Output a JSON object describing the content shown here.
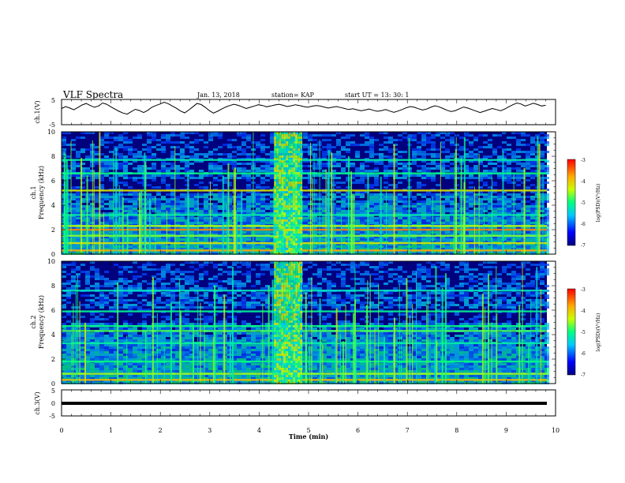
{
  "header": {
    "title": "VLF Spectra",
    "date": "Jan. 13, 2018",
    "station": "station= KAP",
    "start": "start  UT =  13: 30: 1"
  },
  "chart_data": [
    {
      "type": "line",
      "name": "ch1_waveform",
      "ylabel": "ch.1(V)",
      "ylim": [
        -5,
        5
      ],
      "y_ticks": [
        "-5",
        "5"
      ],
      "x_range": [
        0,
        9.8
      ],
      "y": [
        1.4,
        2.2,
        1.6,
        0.9,
        1.8,
        2.8,
        3.4,
        2.6,
        1.9,
        2.4,
        3.6,
        3.1,
        2.1,
        1.2,
        0.3,
        -0.4,
        -0.8,
        0.2,
        1.1,
        0.6,
        -0.2,
        0.7,
        1.9,
        2.6,
        3.2,
        3.9,
        3.3,
        2.4,
        1.5,
        0.4,
        -0.3,
        0.8,
        2.1,
        3.4,
        3.0,
        1.9,
        0.6,
        -0.4,
        0.3,
        1.2,
        2.0,
        2.6,
        3.1,
        2.7,
        2.1,
        1.4,
        1.9,
        2.4,
        2.9,
        2.6,
        2.1,
        2.4,
        2.8,
        3.1,
        2.7,
        2.2,
        2.5,
        2.9,
        2.6,
        2.2,
        1.9,
        2.3,
        2.6,
        2.4,
        2.0,
        1.6,
        1.9,
        2.2,
        1.8,
        1.4,
        1.0,
        1.3,
        0.9,
        0.5,
        0.8,
        1.2,
        0.7,
        0.3,
        0.6,
        1.0,
        0.4,
        -0.1,
        0.4,
        1.0,
        1.7,
        2.2,
        1.9,
        1.3,
        0.8,
        1.2,
        1.9,
        2.5,
        2.1,
        1.4,
        0.7,
        0.2,
        0.6,
        1.3,
        2.0,
        1.6,
        1.0,
        0.4,
        -0.2,
        0.3,
        0.9,
        1.4,
        1.0,
        0.5,
        1.2,
        2.1,
        2.9,
        3.6,
        3.2,
        2.4,
        2.9,
        3.5,
        3.0,
        2.4,
        2.7
      ]
    },
    {
      "type": "heatmap",
      "name": "ch1_spectrogram",
      "ylabel_line1": "ch.1",
      "ylabel_line2": "Frequency (kHz)",
      "ylim": [
        0,
        10
      ],
      "y_ticks": [
        "0",
        "2",
        "4",
        "6",
        "8",
        "10"
      ],
      "x_range_min": [
        0,
        9.8
      ],
      "colorbar": {
        "label": "log(PSD)(V²/Hz)",
        "range": [
          -7,
          -3
        ],
        "ticks": [
          "-3",
          "-4",
          "-5",
          "-6",
          "-7"
        ]
      },
      "burst_min": [
        4.3,
        4.85
      ],
      "bands_khz": [
        {
          "f": 0.3,
          "lvl": -3.8
        },
        {
          "f": 0.9,
          "lvl": -4.2
        },
        {
          "f": 1.5,
          "lvl": -4.6
        },
        {
          "f": 2.0,
          "lvl": -3.6
        },
        {
          "f": 2.3,
          "lvl": -4.4
        },
        {
          "f": 3.2,
          "lvl": -5.2
        },
        {
          "f": 5.2,
          "lvl": -4.2
        },
        {
          "f": 6.6,
          "lvl": -5.0
        },
        {
          "f": 7.7,
          "lvl": -5.2
        }
      ]
    },
    {
      "type": "heatmap",
      "name": "ch2_spectrogram",
      "ylabel_line1": "ch.2",
      "ylabel_line2": "Frequency (kHz)",
      "ylim": [
        0,
        10
      ],
      "y_ticks": [
        "0",
        "2",
        "4",
        "6",
        "8",
        "10"
      ],
      "x_range_min": [
        0,
        9.8
      ],
      "colorbar": {
        "label": "log(PSD)(V²/Hz)",
        "range": [
          -7,
          -3
        ],
        "ticks": [
          "-3",
          "-4",
          "-5",
          "-6",
          "-7"
        ]
      },
      "burst_min": [
        4.3,
        4.85
      ],
      "bands_khz": [
        {
          "f": 0.3,
          "lvl": -3.9
        },
        {
          "f": 0.8,
          "lvl": -4.5
        },
        {
          "f": 1.8,
          "lvl": -5.0
        },
        {
          "f": 3.3,
          "lvl": -5.2
        },
        {
          "f": 4.3,
          "lvl": -4.8
        },
        {
          "f": 4.7,
          "lvl": -5.0
        },
        {
          "f": 5.9,
          "lvl": -5.1
        },
        {
          "f": 7.6,
          "lvl": -5.3
        }
      ]
    },
    {
      "type": "line",
      "name": "ch3_waveform",
      "ylabel": "ch.3(V)",
      "ylim": [
        -5,
        5
      ],
      "y_ticks": [
        "-5",
        "0",
        "5"
      ],
      "constant_value": 0,
      "xlabel": "Time  (min)",
      "xlim": [
        0,
        10
      ],
      "x_ticks": [
        "0",
        "1",
        "2",
        "3",
        "4",
        "5",
        "6",
        "7",
        "8",
        "9",
        "10"
      ]
    }
  ],
  "colors": {
    "background": "#ffffff",
    "axis": "#000000",
    "low": "#00007f",
    "high": "#ff0000"
  }
}
